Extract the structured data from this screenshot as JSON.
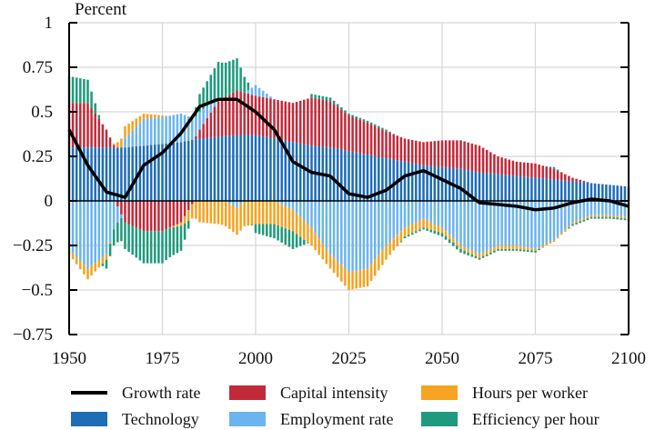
{
  "chart_data": {
    "type": "bar",
    "stacked": true,
    "title": "",
    "ylabel": "Percent",
    "xlabel": "",
    "xlim": [
      1950,
      2100
    ],
    "ylim": [
      -0.75,
      1
    ],
    "x_ticks": [
      "1950",
      "1975",
      "2000",
      "2025",
      "2050",
      "2075",
      "2100"
    ],
    "y_ticks": [
      "1",
      "0.75",
      "0.5",
      "0.25",
      "0",
      "−0.25",
      "−0.5",
      "−0.75"
    ],
    "y_tick_values": [
      1,
      0.75,
      0.5,
      0.25,
      0,
      -0.25,
      -0.5,
      -0.75
    ],
    "grid": true,
    "legend_position": "bottom",
    "x": [
      1950,
      1955,
      1960,
      1965,
      1970,
      1975,
      1980,
      1985,
      1990,
      1995,
      2000,
      2005,
      2010,
      2015,
      2020,
      2025,
      2030,
      2035,
      2040,
      2045,
      2050,
      2055,
      2060,
      2065,
      2070,
      2075,
      2080,
      2085,
      2090,
      2095,
      2100
    ],
    "series": [
      {
        "name": "Technology",
        "kind": "bar",
        "color": "#1f6db5",
        "values": [
          0.3,
          0.3,
          0.3,
          0.3,
          0.31,
          0.32,
          0.33,
          0.35,
          0.36,
          0.37,
          0.37,
          0.35,
          0.33,
          0.31,
          0.3,
          0.28,
          0.26,
          0.24,
          0.22,
          0.2,
          0.19,
          0.18,
          0.16,
          0.15,
          0.14,
          0.13,
          0.12,
          0.11,
          0.1,
          0.09,
          0.08
        ]
      },
      {
        "name": "Capital intensity",
        "kind": "bar",
        "color": "#c22a3a",
        "values": [
          0.25,
          0.25,
          0.1,
          -0.12,
          -0.17,
          -0.17,
          -0.12,
          0.05,
          0.2,
          0.25,
          0.22,
          0.22,
          0.22,
          0.27,
          0.26,
          0.2,
          0.18,
          0.15,
          0.13,
          0.13,
          0.15,
          0.16,
          0.15,
          0.1,
          0.08,
          0.08,
          0.06,
          0.02,
          0.0,
          0.0,
          0.0
        ]
      },
      {
        "name": "Employment rate",
        "kind": "bar",
        "color": "#6cb4ee",
        "values": [
          -0.27,
          -0.38,
          -0.3,
          0.05,
          0.15,
          0.15,
          0.16,
          0.1,
          0.02,
          -0.04,
          0.06,
          0.0,
          -0.05,
          -0.15,
          -0.3,
          -0.4,
          -0.38,
          -0.25,
          -0.15,
          -0.1,
          -0.15,
          -0.25,
          -0.3,
          -0.25,
          -0.25,
          -0.27,
          -0.22,
          -0.12,
          -0.08,
          -0.08,
          -0.09
        ]
      },
      {
        "name": "Hours per worker",
        "kind": "bar",
        "color": "#f5a320",
        "values": [
          -0.03,
          -0.06,
          -0.03,
          0.07,
          0.03,
          0.01,
          -0.02,
          -0.12,
          -0.13,
          -0.15,
          -0.13,
          -0.13,
          -0.12,
          -0.1,
          -0.08,
          -0.1,
          -0.1,
          -0.08,
          -0.05,
          -0.05,
          -0.03,
          -0.02,
          -0.02,
          -0.02,
          -0.02,
          -0.01,
          -0.01,
          -0.01,
          -0.01,
          -0.01,
          -0.01
        ]
      },
      {
        "name": "Efficiency per hour",
        "kind": "bar",
        "color": "#1f9a7c",
        "values": [
          0.15,
          0.13,
          -0.05,
          -0.15,
          -0.18,
          -0.18,
          -0.14,
          0.1,
          0.2,
          0.18,
          -0.05,
          -0.08,
          -0.1,
          0.02,
          0.02,
          0.01,
          0.01,
          0.01,
          -0.01,
          -0.01,
          -0.02,
          -0.02,
          -0.01,
          -0.01,
          -0.01,
          -0.01,
          0.01,
          -0.01,
          -0.01,
          -0.01,
          -0.01
        ]
      },
      {
        "name": "Growth rate",
        "kind": "line",
        "color": "#000000",
        "values": [
          0.4,
          0.2,
          0.05,
          0.02,
          0.2,
          0.27,
          0.38,
          0.53,
          0.57,
          0.57,
          0.5,
          0.4,
          0.22,
          0.16,
          0.14,
          0.04,
          0.02,
          0.06,
          0.14,
          0.17,
          0.12,
          0.07,
          -0.01,
          -0.02,
          -0.03,
          -0.05,
          -0.04,
          -0.01,
          0.01,
          0.0,
          -0.03
        ]
      }
    ]
  },
  "legend": [
    {
      "label": "Growth rate",
      "type": "line",
      "color": "#000000"
    },
    {
      "label": "Capital intensity",
      "type": "swatch",
      "color": "#c22a3a"
    },
    {
      "label": "Hours per worker",
      "type": "swatch",
      "color": "#f5a320"
    },
    {
      "label": "Technology",
      "type": "swatch",
      "color": "#1f6db5"
    },
    {
      "label": "Employment rate",
      "type": "swatch",
      "color": "#6cb4ee"
    },
    {
      "label": "Efficiency per hour",
      "type": "swatch",
      "color": "#1f9a7c"
    }
  ]
}
